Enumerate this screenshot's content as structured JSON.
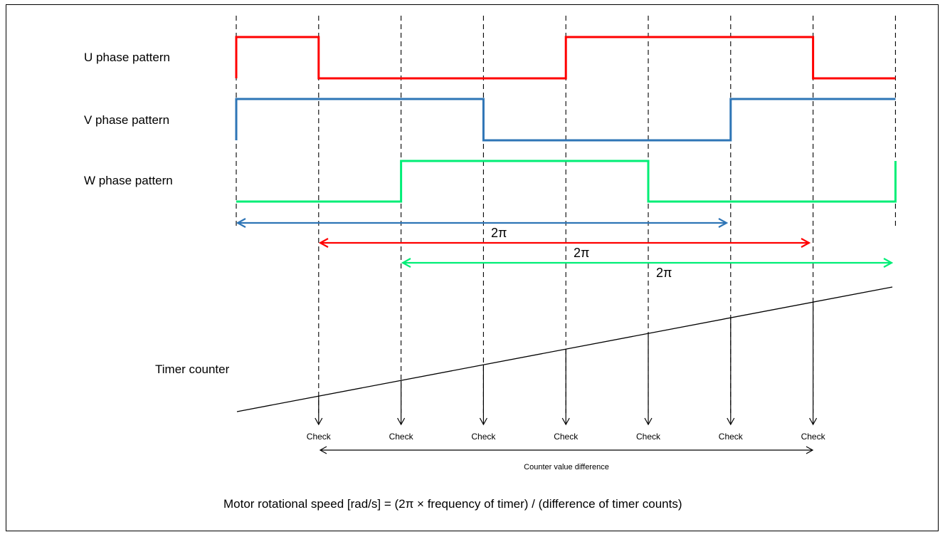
{
  "labels": {
    "u_phase": "U phase pattern",
    "v_phase": "V phase pattern",
    "w_phase": "W phase pattern",
    "timer_counter": "Timer counter",
    "counter_diff": "Counter value difference",
    "formula": "Motor rotational speed [rad/s] = (2π  ×  frequency of timer) / (difference of timer counts)"
  },
  "period_labels": [
    "2π",
    "2π",
    "2π"
  ],
  "check_label": "Check",
  "colors": {
    "u": "#ff0000",
    "v": "#2e75b6",
    "w": "#00ee76",
    "ink": "#000000"
  },
  "phases": {
    "u": [
      1,
      0,
      0,
      0,
      1,
      1,
      1,
      0
    ],
    "v": [
      1,
      1,
      1,
      0,
      0,
      0,
      1,
      1
    ],
    "w": [
      0,
      0,
      1,
      1,
      1,
      0,
      0,
      0
    ]
  },
  "check_count": 7
}
